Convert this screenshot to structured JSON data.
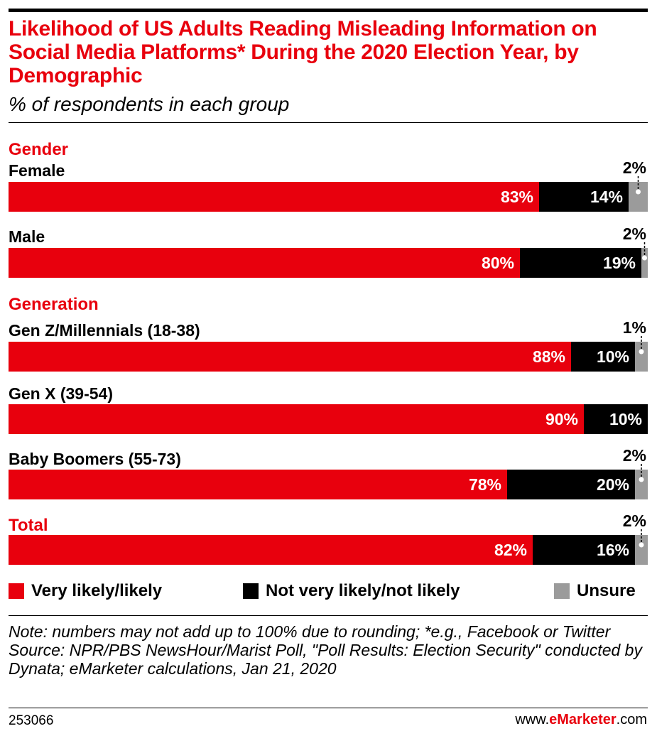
{
  "header": {
    "title": "Likelihood of US Adults Reading Misleading Information on Social Media Platforms* During the 2020 Election Year, by Demographic",
    "subtitle": "% of respondents in each group"
  },
  "colors": {
    "likely": "#e8000d",
    "not_likely": "#000000",
    "unsure": "#9b9b9b"
  },
  "chart_data": {
    "type": "bar",
    "orientation": "horizontal-stacked-100",
    "title": "Likelihood of US Adults Reading Misleading Information on Social Media Platforms* During the 2020 Election Year, by Demographic",
    "subtitle": "% of respondents in each group",
    "series": [
      {
        "name": "Very likely/likely"
      },
      {
        "name": "Not very likely/not likely"
      },
      {
        "name": "Unsure"
      }
    ],
    "groups": [
      {
        "label": "Gender",
        "rows": [
          {
            "label": "Female",
            "values": [
              83,
              14,
              2
            ]
          },
          {
            "label": "Male",
            "values": [
              80,
              19,
              2
            ]
          }
        ]
      },
      {
        "label": "Generation",
        "rows": [
          {
            "label": "Gen Z/Millennials (18-38)",
            "values": [
              88,
              10,
              1
            ]
          },
          {
            "label": "Gen X (39-54)",
            "values": [
              90,
              10,
              0
            ]
          },
          {
            "label": "Baby Boomers (55-73)",
            "values": [
              78,
              20,
              2
            ]
          }
        ]
      },
      {
        "label": "Total",
        "rows": [
          {
            "label": "",
            "values": [
              82,
              16,
              2
            ]
          }
        ]
      }
    ],
    "value_suffix": "%",
    "legend_position": "bottom"
  },
  "legend": {
    "likely": "Very likely/likely",
    "not_likely": "Not very likely/not likely",
    "unsure": "Unsure"
  },
  "notes": {
    "note": "Note: numbers may not add up to 100% due to rounding; *e.g., Facebook or Twitter",
    "source": "Source: NPR/PBS NewsHour/Marist Poll, \"Poll Results: Election Security\" conducted by Dynata; eMarketer calculations, Jan 21, 2020"
  },
  "footer": {
    "chart_id": "253066",
    "brand_prefix": "www.",
    "brand_name": "eMarketer",
    "brand_suffix": ".com"
  }
}
